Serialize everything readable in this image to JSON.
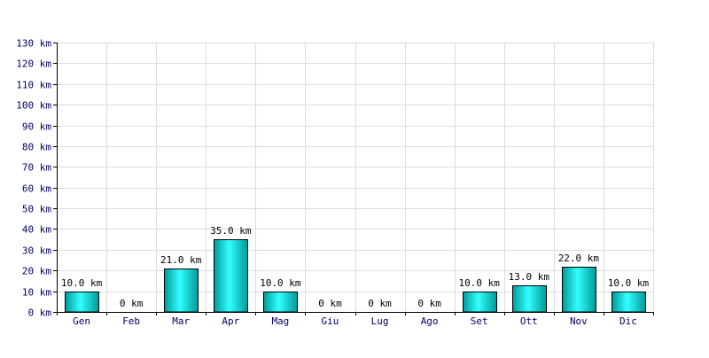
{
  "chart_data": {
    "type": "bar",
    "title": "",
    "xlabel": "",
    "ylabel": "",
    "unit": "km",
    "categories": [
      "Gen",
      "Feb",
      "Mar",
      "Apr",
      "Mag",
      "Giu",
      "Lug",
      "Ago",
      "Set",
      "Ott",
      "Nov",
      "Dic"
    ],
    "values": [
      10.0,
      0,
      21.0,
      35.0,
      10.0,
      0,
      0,
      0,
      10.0,
      13.0,
      22.0,
      10.0
    ],
    "value_labels": [
      "10.0 km",
      "0 km",
      "21.0 km",
      "35.0 km",
      "10.0 km",
      "0 km",
      "0 km",
      "0 km",
      "10.0 km",
      "13.0 km",
      "22.0 km",
      "10.0 km"
    ],
    "ylim": [
      0,
      130
    ],
    "y_ticks": [
      0,
      10,
      20,
      30,
      40,
      50,
      60,
      70,
      80,
      90,
      100,
      110,
      120,
      130
    ],
    "y_tick_labels": [
      "0 km",
      "10 km",
      "20 km",
      "30 km",
      "40 km",
      "50 km",
      "60 km",
      "70 km",
      "80 km",
      "90 km",
      "100 km",
      "110 km",
      "120 km",
      "130 km"
    ],
    "grid": true,
    "legend": "none",
    "colors": {
      "bar_light": "#33ffff",
      "bar_dark": "#009999",
      "bar_outline": "#000000",
      "grid": "#dddddd",
      "axis": "#000000",
      "axis_text": "#000066",
      "label_text": "#000000"
    }
  }
}
